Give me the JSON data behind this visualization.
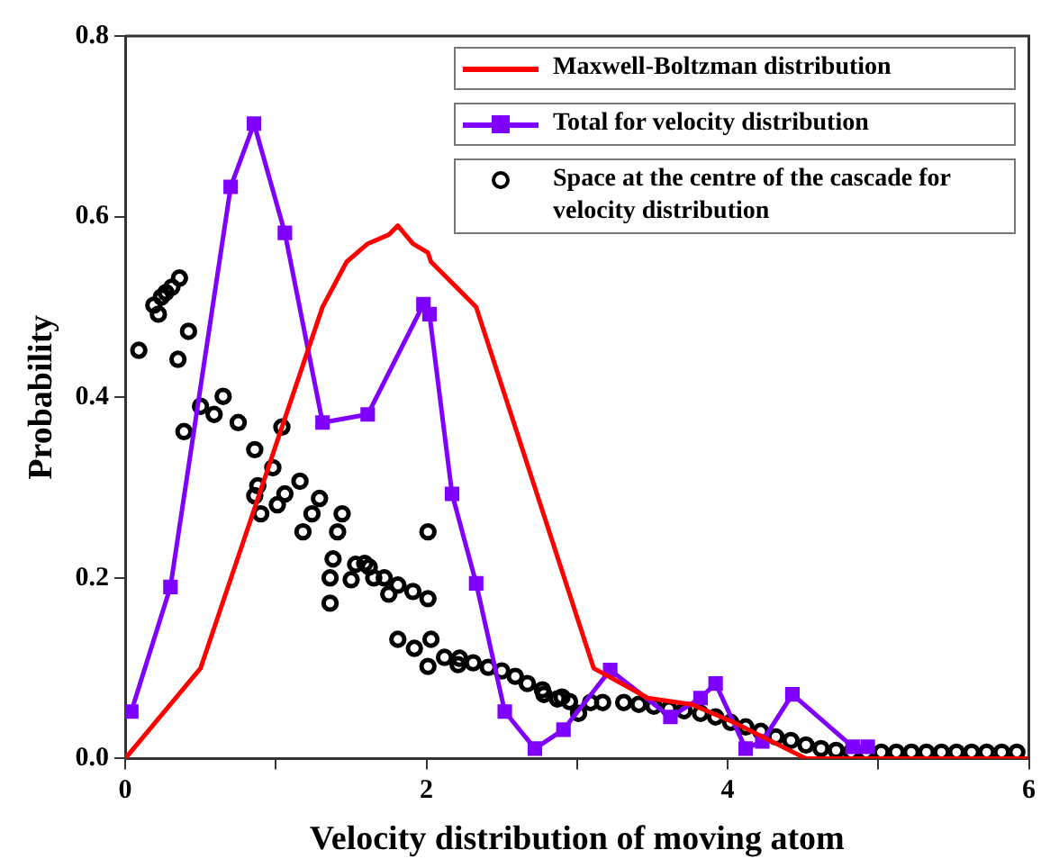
{
  "chart_data": {
    "type": "line",
    "xlabel": "Velocity distribution of moving atom",
    "ylabel": "Probability",
    "xlim": [
      0,
      6
    ],
    "ylim": [
      0,
      0.8
    ],
    "xticks": [
      0,
      {
        "value": 1,
        "label": null
      },
      2,
      {
        "value": 3,
        "label": null
      },
      4,
      {
        "value": 5,
        "label": null
      },
      6
    ],
    "yticks": [
      {
        "value": 0,
        "label": "0.0"
      },
      0.2,
      0.4,
      0.6,
      0.8
    ],
    "grid": false,
    "legend": "top right",
    "series": [
      {
        "name": "Maxwell-Boltzman distribution",
        "type": "line",
        "color": "#ff0000",
        "marker": "none",
        "x": [
          0,
          0.5,
          1.31,
          1.47,
          1.61,
          1.75,
          1.81,
          1.91,
          2.01,
          2.03,
          2.33,
          3.11,
          3.47,
          3.76,
          4.04,
          4.52,
          6
        ],
        "values": [
          0,
          0.1,
          0.5,
          0.55,
          0.57,
          0.58,
          0.59,
          0.57,
          0.56,
          0.55,
          0.5,
          0.1,
          0.067,
          0.06,
          0.04,
          0,
          0
        ]
      },
      {
        "name": "Total for velocity distribution",
        "type": "line",
        "color": "#8000ff",
        "marker": "square",
        "x": [
          0.04,
          0.3,
          0.7,
          0.855,
          1.06,
          1.31,
          1.61,
          1.98,
          2.02,
          2.17,
          2.33,
          2.52,
          2.72,
          2.91,
          3.22,
          3.62,
          3.82,
          3.92,
          4.12,
          4.23,
          4.43,
          4.83,
          4.93
        ],
        "values": [
          0.052,
          0.19,
          0.633,
          0.703,
          0.582,
          0.372,
          0.381,
          0.503,
          0.492,
          0.293,
          0.194,
          0.052,
          0.011,
          0.032,
          0.098,
          0.046,
          0.067,
          0.083,
          0.011,
          0.019,
          0.071,
          0.013,
          0.013
        ]
      },
      {
        "name": "Space at the centre of the cascade for velocity distribution",
        "type": "scatter",
        "color": "#000000",
        "marker": "circle",
        "x": [
          0.09,
          0.19,
          0.22,
          0.24,
          0.27,
          0.31,
          0.36,
          0.35,
          0.42,
          0.39,
          0.5,
          0.59,
          0.65,
          0.75,
          0.86,
          0.86,
          0.88,
          0.9,
          0.98,
          1.01,
          1.04,
          1.06,
          1.16,
          1.18,
          1.24,
          1.29,
          1.36,
          1.36,
          1.38,
          1.41,
          1.44,
          1.5,
          1.53,
          1.59,
          1.62,
          1.65,
          1.72,
          1.75,
          1.81,
          1.91,
          2.01,
          2.01,
          1.81,
          1.92,
          2.03,
          2.01,
          2.12,
          2.21,
          2.22,
          2.31,
          2.41,
          2.5,
          2.59,
          2.67,
          2.78,
          2.9,
          2.77,
          2.87,
          2.95,
          3.01,
          3.09,
          3.17,
          3.31,
          3.41,
          3.51,
          3.61,
          3.71,
          3.82,
          3.92,
          4.02,
          4.12,
          4.22,
          4.32,
          4.42,
          4.52,
          4.62,
          4.72,
          4.82,
          4.92,
          5.02,
          5.12,
          5.22,
          5.32,
          5.42,
          5.52,
          5.62,
          5.72,
          5.82,
          5.92
        ],
        "values": [
          0.452,
          0.502,
          0.492,
          0.511,
          0.516,
          0.522,
          0.532,
          0.442,
          0.473,
          0.362,
          0.39,
          0.381,
          0.401,
          0.372,
          0.342,
          0.291,
          0.302,
          0.271,
          0.322,
          0.281,
          0.367,
          0.293,
          0.307,
          0.251,
          0.271,
          0.288,
          0.172,
          0.2,
          0.221,
          0.251,
          0.271,
          0.198,
          0.215,
          0.216,
          0.212,
          0.2,
          0.2,
          0.182,
          0.192,
          0.185,
          0.177,
          0.251,
          0.132,
          0.122,
          0.132,
          0.102,
          0.112,
          0.104,
          0.111,
          0.106,
          0.101,
          0.097,
          0.091,
          0.083,
          0.071,
          0.068,
          0.076,
          0.066,
          0.063,
          0.05,
          0.062,
          0.062,
          0.062,
          0.06,
          0.058,
          0.055,
          0.053,
          0.05,
          0.046,
          0.04,
          0.035,
          0.03,
          0.024,
          0.02,
          0.015,
          0.011,
          0.009,
          0.007,
          0.007,
          0.007,
          0.007,
          0.007,
          0.007,
          0.007,
          0.007,
          0.007,
          0.007,
          0.007,
          0.007
        ]
      }
    ]
  }
}
